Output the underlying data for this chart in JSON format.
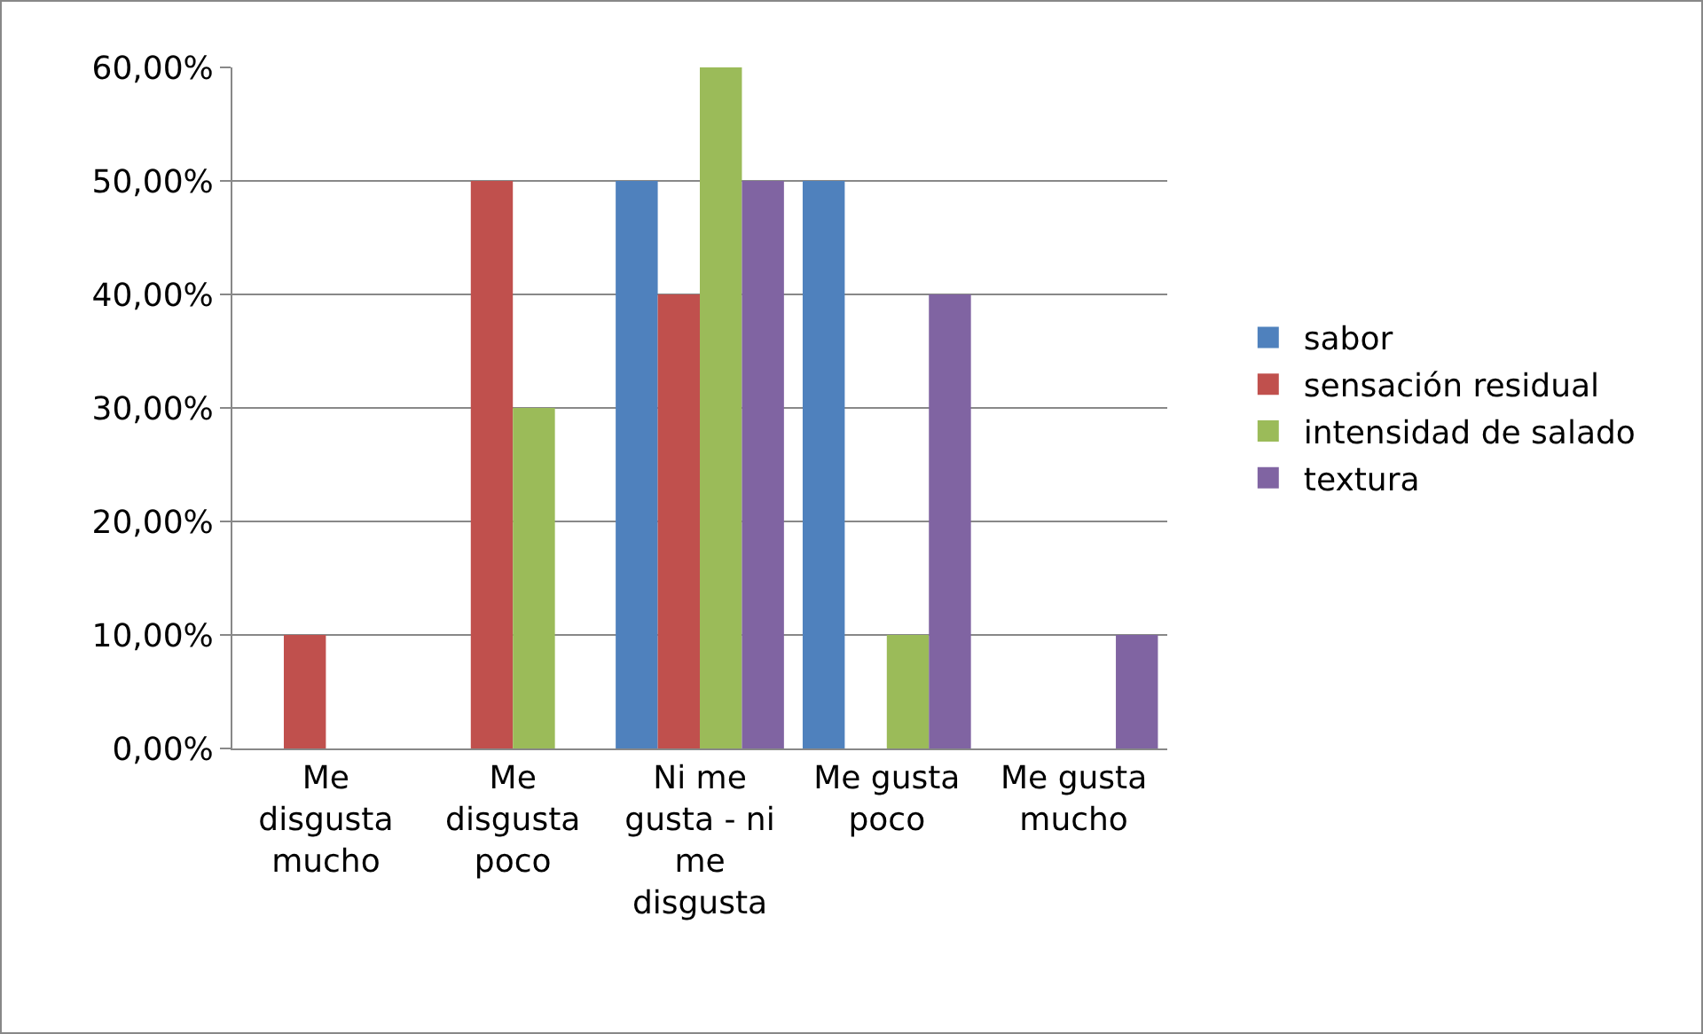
{
  "chart_data": {
    "type": "bar",
    "categories": [
      "Me disgusta mucho",
      "Me disgusta poco",
      "Ni me gusta - ni me disgusta",
      "Me gusta poco",
      "Me gusta mucho"
    ],
    "series": [
      {
        "name": "sabor",
        "color": "#4f81bd",
        "values": [
          0,
          0,
          50,
          50,
          0
        ]
      },
      {
        "name": "sensación residual",
        "color": "#c0504d",
        "values": [
          10,
          50,
          40,
          0,
          0
        ]
      },
      {
        "name": "intensidad de salado",
        "color": "#9bbb59",
        "values": [
          0,
          30,
          60,
          10,
          0
        ]
      },
      {
        "name": "textura",
        "color": "#8064a2",
        "values": [
          0,
          0,
          50,
          40,
          10
        ]
      }
    ],
    "ylim": [
      0,
      60
    ],
    "yticks": [
      {
        "value": 0,
        "label": "0,00%"
      },
      {
        "value": 10,
        "label": "10,00%"
      },
      {
        "value": 20,
        "label": "20,00%"
      },
      {
        "value": 30,
        "label": "30,00%"
      },
      {
        "value": 40,
        "label": "40,00%"
      },
      {
        "value": 50,
        "label": "50,00%"
      },
      {
        "value": 60,
        "label": "60,00%"
      }
    ],
    "grid": "y",
    "legend": "right"
  }
}
